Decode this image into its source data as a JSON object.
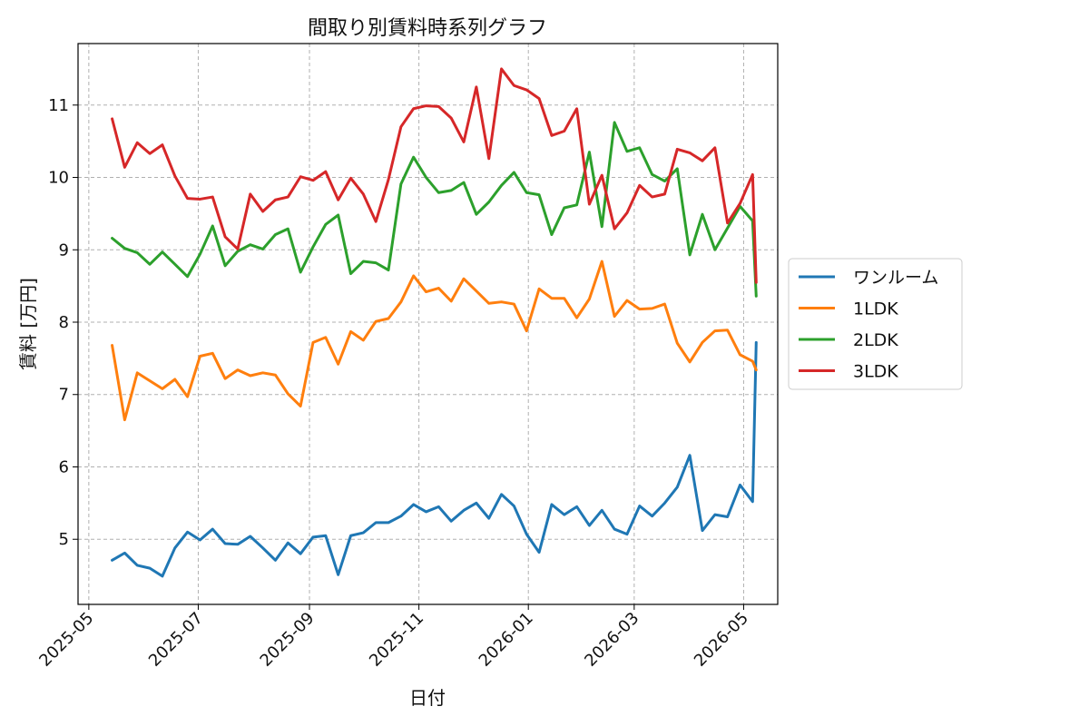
{
  "chart_data": {
    "type": "line",
    "title": "間取り別賃料時系列グラフ",
    "xlabel": "日付",
    "ylabel": "賃料 [万円]",
    "x_axis_type": "date",
    "xlim": [
      "2025-04-25",
      "2026-05-20"
    ],
    "ylim": [
      4.1,
      11.85
    ],
    "x_ticks": [
      "2025-05",
      "2025-07",
      "2025-09",
      "2025-11",
      "2026-01",
      "2026-03",
      "2026-05"
    ],
    "y_ticks": [
      5,
      6,
      7,
      8,
      9,
      10,
      11
    ],
    "grid": true,
    "legend_position": "center-right (outside plot)",
    "x": [
      "2025-05-14",
      "2025-05-21",
      "2025-05-28",
      "2025-06-04",
      "2025-06-11",
      "2025-06-18",
      "2025-06-25",
      "2025-07-02",
      "2025-07-09",
      "2025-07-16",
      "2025-07-23",
      "2025-07-30",
      "2025-08-06",
      "2025-08-13",
      "2025-08-20",
      "2025-08-27",
      "2025-09-03",
      "2025-09-10",
      "2025-09-17",
      "2025-09-24",
      "2025-10-01",
      "2025-10-08",
      "2025-10-15",
      "2025-10-22",
      "2025-10-29",
      "2025-11-05",
      "2025-11-12",
      "2025-11-19",
      "2025-11-26",
      "2025-12-03",
      "2025-12-10",
      "2025-12-17",
      "2025-12-24",
      "2025-12-31",
      "2026-01-07",
      "2026-01-14",
      "2026-01-21",
      "2026-01-28",
      "2026-02-04",
      "2026-02-11",
      "2026-02-18",
      "2026-02-25",
      "2026-03-04",
      "2026-03-11",
      "2026-03-18",
      "2026-03-25",
      "2026-04-01",
      "2026-04-08",
      "2026-04-15",
      "2026-04-22",
      "2026-04-29",
      "2026-05-06",
      "2026-05-08"
    ],
    "series": [
      {
        "name": "ワンルーム",
        "color": "#1f77b4",
        "values": [
          4.71,
          4.81,
          4.64,
          4.6,
          4.49,
          4.88,
          5.1,
          4.99,
          5.14,
          4.94,
          4.93,
          5.04,
          4.88,
          4.71,
          4.95,
          4.8,
          5.03,
          5.05,
          4.51,
          5.05,
          5.09,
          5.23,
          5.23,
          5.32,
          5.48,
          5.38,
          5.45,
          5.25,
          5.4,
          5.5,
          5.29,
          5.62,
          5.46,
          5.07,
          4.82,
          5.48,
          5.34,
          5.45,
          5.19,
          5.4,
          5.14,
          5.07,
          5.46,
          5.32,
          5.5,
          5.72,
          6.16,
          5.12,
          5.34,
          5.31,
          5.75,
          5.52,
          7.72
        ]
      },
      {
        "name": "1LDK",
        "color": "#ff7f0e",
        "values": [
          7.68,
          6.65,
          7.3,
          7.19,
          7.08,
          7.21,
          6.97,
          7.53,
          7.57,
          7.22,
          7.34,
          7.26,
          7.3,
          7.27,
          7.01,
          6.84,
          7.72,
          7.79,
          7.42,
          7.87,
          7.75,
          8.01,
          8.05,
          8.28,
          8.64,
          8.42,
          8.47,
          8.29,
          8.6,
          8.43,
          8.26,
          8.28,
          8.25,
          7.88,
          8.46,
          8.33,
          8.33,
          8.06,
          8.32,
          8.84,
          8.08,
          8.3,
          8.18,
          8.19,
          8.25,
          7.71,
          7.45,
          7.72,
          7.88,
          7.89,
          7.55,
          7.46,
          7.34
        ]
      },
      {
        "name": "2LDK",
        "color": "#2ca02c",
        "values": [
          9.16,
          9.02,
          8.96,
          8.8,
          8.97,
          8.8,
          8.63,
          8.94,
          9.33,
          8.78,
          8.98,
          9.07,
          9.01,
          9.21,
          9.29,
          8.69,
          9.04,
          9.35,
          9.48,
          8.67,
          8.84,
          8.82,
          8.72,
          9.91,
          10.28,
          10.0,
          9.79,
          9.82,
          9.93,
          9.49,
          9.66,
          9.89,
          10.07,
          9.79,
          9.76,
          9.21,
          9.58,
          9.62,
          10.35,
          9.32,
          10.76,
          10.36,
          10.41,
          10.04,
          9.95,
          10.12,
          8.93,
          9.49,
          9.0,
          9.3,
          9.6,
          9.4,
          8.36
        ]
      },
      {
        "name": "3LDK",
        "color": "#d62728",
        "values": [
          10.81,
          10.14,
          10.48,
          10.33,
          10.45,
          10.02,
          9.71,
          9.7,
          9.73,
          9.18,
          9.01,
          9.77,
          9.53,
          9.69,
          9.73,
          10.01,
          9.96,
          10.08,
          9.69,
          9.99,
          9.77,
          9.39,
          9.97,
          10.7,
          10.95,
          10.99,
          10.98,
          10.82,
          10.49,
          11.25,
          10.26,
          11.5,
          11.27,
          11.21,
          11.09,
          10.58,
          10.64,
          10.95,
          9.63,
          10.03,
          9.29,
          9.51,
          9.89,
          9.73,
          9.77,
          10.39,
          10.34,
          10.23,
          10.41,
          9.37,
          9.64,
          10.04,
          8.55
        ]
      }
    ]
  }
}
